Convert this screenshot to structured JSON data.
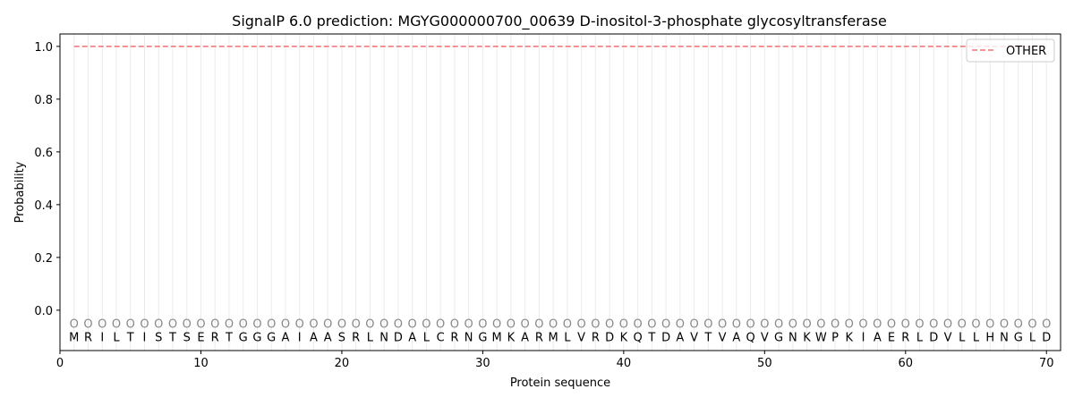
{
  "chart_data": {
    "type": "line",
    "title": "SignalP 6.0 prediction: MGYG000000700_00639 D-inositol-3-phosphate glycosyltransferase",
    "xlabel": "Protein sequence",
    "ylabel": "Probability",
    "xlim": [
      0,
      71
    ],
    "ylim": [
      -0.153,
      1.047
    ],
    "xticks": [
      0,
      10,
      20,
      30,
      40,
      50,
      60,
      70
    ],
    "yticks": [
      0.0,
      0.2,
      0.4,
      0.6,
      0.8,
      1.0
    ],
    "ytick_labels": [
      "0.0",
      "0.2",
      "0.4",
      "0.6",
      "0.8",
      "1.0"
    ],
    "grid": "vertical lines at each residue",
    "legend_position": "top-right",
    "sequence": "MRILTISTSERTGGGAIAASRLNDALCRNGMKARMLVRDKQTDAVTVAQVGNKWPKIAERLDVLLHNGLD",
    "predicted_labels": "OOOOOOOOOOOOOOOOOOOOOOOOOOOOOOOOOOOOOOOOOOOOOOOOOOOOOOOOOOOOOOOOOOOOOO",
    "series": [
      {
        "name": "OTHER",
        "color": "#f07070",
        "style": "dashed",
        "x_range": [
          1,
          70
        ],
        "value": 1.0
      }
    ]
  }
}
